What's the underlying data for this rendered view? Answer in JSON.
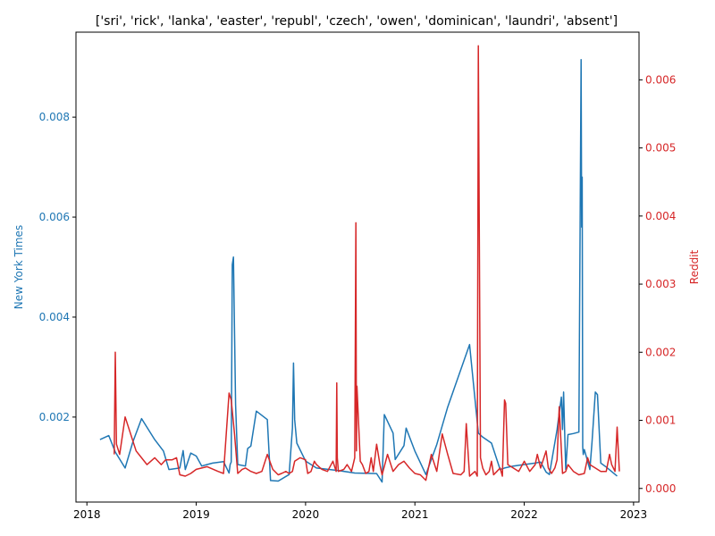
{
  "chart_data": {
    "type": "line",
    "title": "['sri', 'rick', 'lanka', 'easter', 'republ', 'czech', 'owen', 'dominican', 'laundri', 'absent']",
    "xlim": [
      2017.9,
      2023.05
    ],
    "x_ticks": [
      2018,
      2019,
      2020,
      2021,
      2022,
      2023
    ],
    "axes": {
      "left": {
        "label": "New York Times",
        "color": "#1f77b4",
        "ylim": [
          0.0003,
          0.0097
        ],
        "ticks": [
          0.002,
          0.004,
          0.006,
          0.008
        ],
        "tick_labels": [
          "0.002",
          "0.004",
          "0.006",
          "0.008"
        ]
      },
      "right": {
        "label": "Reddit",
        "color": "#d62728",
        "ylim": [
          -0.0002,
          0.0067
        ],
        "ticks": [
          0.0,
          0.001,
          0.002,
          0.003,
          0.004,
          0.005,
          0.006
        ],
        "tick_labels": [
          "0.000",
          "0.001",
          "0.002",
          "0.003",
          "0.004",
          "0.005",
          "0.006"
        ]
      }
    },
    "series": [
      {
        "name": "New York Times",
        "axis": "left",
        "color": "#1f77b4",
        "x": [
          2018.12,
          2018.2,
          2018.26,
          2018.35,
          2018.42,
          2018.5,
          2018.62,
          2018.7,
          2018.75,
          2018.85,
          2018.88,
          2018.9,
          2018.95,
          2019.0,
          2019.05,
          2019.1,
          2019.15,
          2019.25,
          2019.3,
          2019.31,
          2019.32,
          2019.33,
          2019.34,
          2019.36,
          2019.38,
          2019.45,
          2019.47,
          2019.5,
          2019.55,
          2019.65,
          2019.68,
          2019.75,
          2019.85,
          2019.88,
          2019.89,
          2019.9,
          2019.92,
          2020.0,
          2020.1,
          2020.3,
          2020.45,
          2020.65,
          2020.7,
          2020.72,
          2020.8,
          2020.82,
          2020.9,
          2020.92,
          2021.0,
          2021.1,
          2021.2,
          2021.3,
          2021.5,
          2021.58,
          2021.62,
          2021.7,
          2021.78,
          2021.82,
          2021.9,
          2022.0,
          2022.1,
          2022.15,
          2022.2,
          2022.23,
          2022.3,
          2022.34,
          2022.35,
          2022.36,
          2022.37,
          2022.38,
          2022.4,
          2022.45,
          2022.5,
          2022.52,
          2022.525,
          2022.53,
          2022.535,
          2022.54,
          2022.55,
          2022.6,
          2022.62,
          2022.65,
          2022.67,
          2022.7,
          2022.75,
          2022.85
        ],
        "y": [
          0.00155,
          0.00163,
          0.0013,
          0.00098,
          0.0015,
          0.00197,
          0.00155,
          0.00132,
          0.00095,
          0.00098,
          0.00133,
          0.00095,
          0.00128,
          0.00122,
          0.00102,
          0.00105,
          0.00108,
          0.00111,
          0.00088,
          0.00105,
          0.0011,
          0.00505,
          0.0052,
          0.00225,
          0.00105,
          0.00102,
          0.00137,
          0.00142,
          0.00212,
          0.00195,
          0.00073,
          0.00072,
          0.00085,
          0.00178,
          0.00308,
          0.00195,
          0.00148,
          0.00112,
          0.00098,
          0.00093,
          0.00088,
          0.00087,
          0.0007,
          0.00205,
          0.00168,
          0.00115,
          0.00143,
          0.00178,
          0.00132,
          0.00085,
          0.00145,
          0.0022,
          0.00345,
          0.00168,
          0.0016,
          0.00148,
          0.00095,
          0.00098,
          0.00102,
          0.00105,
          0.00108,
          0.0011,
          0.0009,
          0.00085,
          0.00175,
          0.0024,
          0.00175,
          0.0025,
          0.0017,
          0.00095,
          0.00165,
          0.00167,
          0.0017,
          0.00915,
          0.0058,
          0.0068,
          0.0014,
          0.00125,
          0.00135,
          0.00095,
          0.0015,
          0.0025,
          0.00245,
          0.00108,
          0.001,
          0.00082
        ]
      },
      {
        "name": "Reddit",
        "axis": "right",
        "color": "#d62728",
        "x": [
          2018.25,
          2018.26,
          2018.27,
          2018.3,
          2018.35,
          2018.45,
          2018.55,
          2018.62,
          2018.68,
          2018.72,
          2018.78,
          2018.82,
          2018.85,
          2018.9,
          2018.95,
          2019.0,
          2019.1,
          2019.2,
          2019.25,
          2019.3,
          2019.32,
          2019.35,
          2019.38,
          2019.42,
          2019.45,
          2019.5,
          2019.55,
          2019.6,
          2019.65,
          2019.7,
          2019.75,
          2019.78,
          2019.82,
          2019.85,
          2019.88,
          2019.9,
          2019.95,
          2020.0,
          2020.02,
          2020.05,
          2020.08,
          2020.1,
          2020.15,
          2020.2,
          2020.25,
          2020.28,
          2020.285,
          2020.29,
          2020.3,
          2020.35,
          2020.38,
          2020.42,
          2020.45,
          2020.46,
          2020.465,
          2020.47,
          2020.5,
          2020.52,
          2020.55,
          2020.58,
          2020.6,
          2020.62,
          2020.65,
          2020.68,
          2020.7,
          2020.75,
          2020.8,
          2020.85,
          2020.9,
          2020.95,
          2021.0,
          2021.05,
          2021.1,
          2021.15,
          2021.2,
          2021.25,
          2021.3,
          2021.35,
          2021.42,
          2021.45,
          2021.47,
          2021.5,
          2021.55,
          2021.57,
          2021.58,
          2021.6,
          2021.62,
          2021.65,
          2021.68,
          2021.7,
          2021.72,
          2021.75,
          2021.78,
          2021.8,
          2021.82,
          2021.83,
          2021.85,
          2021.9,
          2021.95,
          2022.0,
          2022.05,
          2022.1,
          2022.12,
          2022.15,
          2022.2,
          2022.22,
          2022.25,
          2022.28,
          2022.3,
          2022.32,
          2022.35,
          2022.38,
          2022.4,
          2022.45,
          2022.5,
          2022.55,
          2022.58,
          2022.6,
          2022.65,
          2022.7,
          2022.75,
          2022.78,
          2022.8,
          2022.83,
          2022.85,
          2022.87
        ],
        "y": [
          0.0005,
          0.002,
          0.00065,
          0.0005,
          0.00105,
          0.00055,
          0.00035,
          0.00045,
          0.00035,
          0.00042,
          0.00042,
          0.00045,
          0.0002,
          0.00018,
          0.00022,
          0.00028,
          0.00032,
          0.00025,
          0.00022,
          0.0014,
          0.0013,
          0.0008,
          0.00022,
          0.00028,
          0.0003,
          0.00025,
          0.00022,
          0.00025,
          0.0005,
          0.00028,
          0.0002,
          0.00022,
          0.00025,
          0.00022,
          0.00025,
          0.0004,
          0.00045,
          0.00042,
          0.00022,
          0.00025,
          0.0004,
          0.00035,
          0.00028,
          0.00025,
          0.0004,
          0.00025,
          0.00155,
          0.00045,
          0.00025,
          0.00028,
          0.00035,
          0.00025,
          0.00045,
          0.0039,
          0.00055,
          0.0015,
          0.0004,
          0.00035,
          0.00022,
          0.00025,
          0.00045,
          0.00025,
          0.00065,
          0.00035,
          0.0002,
          0.0005,
          0.00025,
          0.00035,
          0.0004,
          0.0003,
          0.00022,
          0.0002,
          0.00012,
          0.0005,
          0.00025,
          0.0008,
          0.0005,
          0.00022,
          0.0002,
          0.00025,
          0.00095,
          0.00018,
          0.00025,
          0.00018,
          0.0065,
          0.00045,
          0.0003,
          0.0002,
          0.00025,
          0.0004,
          0.0002,
          0.00025,
          0.0003,
          0.00018,
          0.0013,
          0.00125,
          0.00035,
          0.0003,
          0.00025,
          0.0004,
          0.00025,
          0.00035,
          0.0005,
          0.0003,
          0.00055,
          0.0003,
          0.00022,
          0.0003,
          0.00042,
          0.0012,
          0.00022,
          0.00025,
          0.00035,
          0.00025,
          0.0002,
          0.00022,
          0.00045,
          0.00035,
          0.0003,
          0.00025,
          0.00025,
          0.0005,
          0.00035,
          0.00025,
          0.0009,
          0.00025
        ]
      }
    ]
  }
}
